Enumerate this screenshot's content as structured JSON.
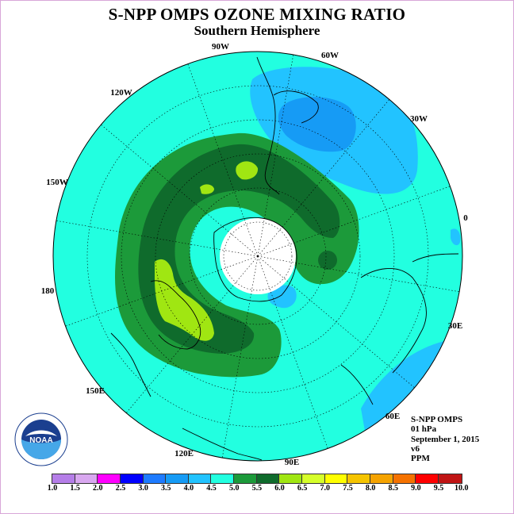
{
  "title": "S-NPP OMPS OZONE MIXING RATIO",
  "subtitle": "Southern Hemisphere",
  "longitude_labels": [
    "90W",
    "60W",
    "30W",
    "0",
    "30E",
    "60E",
    "90E",
    "120E",
    "150E",
    "180",
    "150W",
    "120W"
  ],
  "info": {
    "instrument": "S-NPP OMPS",
    "level": "01 hPa",
    "date": "September 1, 2015",
    "version": "v6",
    "units": "PPM"
  },
  "logo": {
    "icon": "noaa-logo",
    "text": "NOAA"
  },
  "colorbar": {
    "ticks": [
      "1.0",
      "1.5",
      "2.0",
      "2.5",
      "3.0",
      "3.5",
      "4.0",
      "4.5",
      "5.0",
      "5.5",
      "6.0",
      "6.5",
      "7.0",
      "7.5",
      "8.0",
      "8.5",
      "9.0",
      "9.5",
      "10.0"
    ],
    "colors": [
      "#b57ee8",
      "#d9a8f0",
      "#ff00ff",
      "#0000ff",
      "#1e7bff",
      "#169bf5",
      "#22c3ff",
      "#22ffe0",
      "#1c9a3a",
      "#0f6b2c",
      "#a0e612",
      "#d6ff2a",
      "#ffff00",
      "#f5c400",
      "#f5a300",
      "#f57200",
      "#ff0000",
      "#c01414"
    ]
  },
  "map_colors": {
    "background_fill": "#22ffe0",
    "band_4_0_4_5": "#22c3ff",
    "band_3_5_4_0": "#169bf5",
    "band_5_0_5_5": "#1c9a3a",
    "band_5_5_6_0": "#0f6b2c",
    "band_6_0_6_5": "#a0e612",
    "no_data": "#ffffff"
  }
}
